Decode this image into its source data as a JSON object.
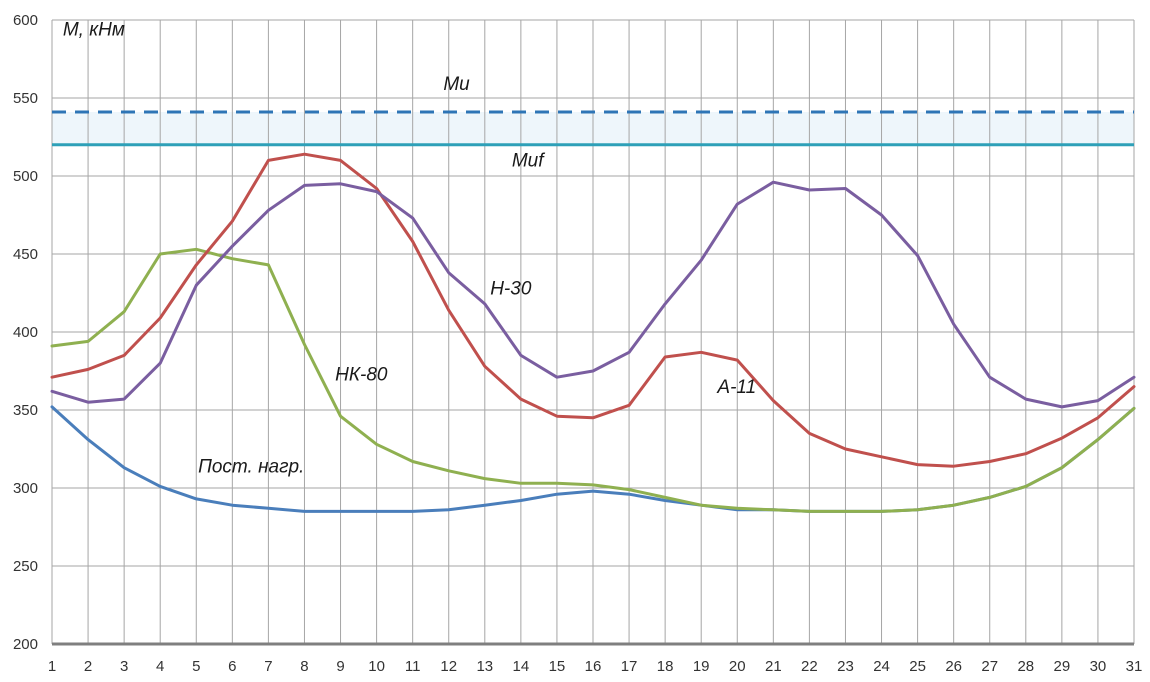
{
  "chart_data": {
    "type": "line",
    "title": "",
    "xlabel": "",
    "ylabel": "M, кНм",
    "x": [
      1,
      2,
      3,
      4,
      5,
      6,
      7,
      8,
      9,
      10,
      11,
      12,
      13,
      14,
      15,
      16,
      17,
      18,
      19,
      20,
      21,
      22,
      23,
      24,
      25,
      26,
      27,
      28,
      29,
      30,
      31
    ],
    "xlim": [
      1,
      31
    ],
    "ylim": [
      200,
      600
    ],
    "yticks": [
      200,
      250,
      300,
      350,
      400,
      450,
      500,
      550,
      600
    ],
    "grid": true,
    "legend": "none",
    "series": [
      {
        "name": "H-30",
        "color": "#7a5ea0",
        "values": [
          362,
          355,
          357,
          380,
          430,
          455,
          478,
          494,
          495,
          490,
          473,
          438,
          418,
          385,
          371,
          375,
          387,
          418,
          446,
          482,
          496,
          491,
          492,
          475,
          449,
          405,
          371,
          357,
          352,
          356,
          371
        ]
      },
      {
        "name": "A-11",
        "color": "#c0504d",
        "values": [
          371,
          376,
          385,
          409,
          443,
          471,
          510,
          514,
          510,
          492,
          458,
          414,
          378,
          357,
          346,
          345,
          353,
          384,
          387,
          382,
          356,
          335,
          325,
          320,
          315,
          314,
          317,
          322,
          332,
          345,
          365
        ]
      },
      {
        "name": "НК-80",
        "color": "#8fb050",
        "values": [
          391,
          394,
          413,
          450,
          453,
          447,
          443,
          392,
          346,
          328,
          317,
          311,
          306,
          303,
          303,
          302,
          299,
          294,
          289,
          287,
          286,
          285,
          285,
          285,
          286,
          289,
          294,
          301,
          313,
          331,
          351
        ]
      },
      {
        "name": "Пост. нагр.",
        "color": "#4a7ebb",
        "values": [
          352,
          331,
          313,
          301,
          293,
          289,
          287,
          285,
          285,
          285,
          285,
          286,
          289,
          292,
          296,
          298,
          296,
          292,
          289,
          286,
          286,
          285,
          285,
          285,
          286,
          289,
          294,
          301,
          313,
          331,
          351
        ]
      }
    ],
    "reference_lines": [
      {
        "name": "Mu",
        "value": 541,
        "color": "#2e75b6",
        "style": "dashed"
      },
      {
        "name": "Muf",
        "value": 520,
        "color": "#2ea0b8",
        "style": "solid"
      }
    ],
    "band": {
      "from": 520,
      "to": 541,
      "color": "#eef6fb"
    },
    "annotations": [
      {
        "text": "M, кНм",
        "x": 1.3,
        "y": 590
      },
      {
        "text": "Mu",
        "x": 11.85,
        "y": 555
      },
      {
        "text": "Muf",
        "x": 13.75,
        "y": 506
      },
      {
        "text": "H-30",
        "x": 13.15,
        "y": 424
      },
      {
        "text": "НК-80",
        "x": 8.85,
        "y": 369
      },
      {
        "text": "A-11",
        "x": 19.45,
        "y": 361
      },
      {
        "text": "Пост. нагр.",
        "x": 5.05,
        "y": 310
      }
    ]
  }
}
